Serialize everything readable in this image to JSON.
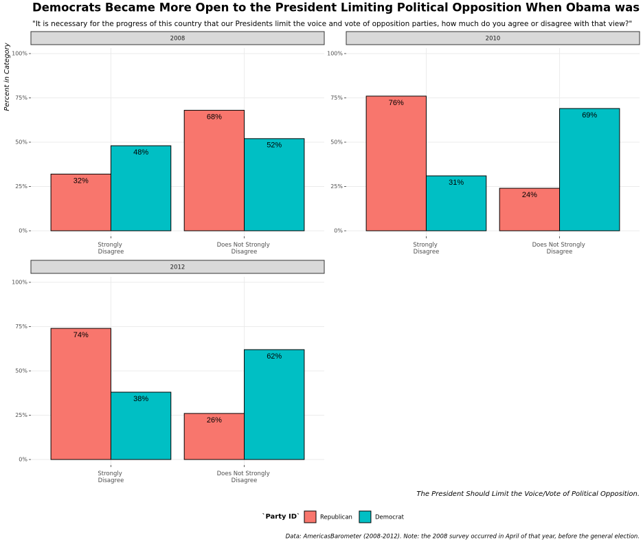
{
  "title": "Democrats Became More Open to the President Limiting Political Opposition When Obama was President",
  "subtitle": "\"It is necessary for the progress of this country that our Presidents limit the voice and vote of opposition parties, how much do you agree or disagree with that view?\"",
  "y_label": "Percent in Category",
  "x_label": "The President Should Limit the Voice/Vote of Political Opposition.",
  "legend_title": "`Party ID`",
  "caption": "Data: AmericasBarometer (2008-2012). Note: the 2008 survey occurred in April of that year, before the general election.",
  "chart_data": [
    {
      "type": "bar",
      "title": "2008",
      "categories": [
        "Strongly Disagree",
        "Does Not Strongly Disagree"
      ],
      "series": [
        {
          "name": "Republican",
          "color": "#f8766d",
          "values": [
            32,
            68
          ],
          "value_labels": [
            "32%",
            "68%"
          ]
        },
        {
          "name": "Democrat",
          "color": "#00bfc4",
          "values": [
            48,
            52
          ],
          "value_labels": [
            "48%",
            "52%"
          ]
        }
      ],
      "ylim": [
        0,
        100
      ],
      "yticks": [
        {
          "value": 0,
          "label": "0%"
        },
        {
          "value": 25,
          "label": "25%"
        },
        {
          "value": 50,
          "label": "50%"
        },
        {
          "value": 75,
          "label": "75%"
        },
        {
          "value": 100,
          "label": "100%"
        }
      ],
      "grid": true
    },
    {
      "type": "bar",
      "title": "2010",
      "categories": [
        "Strongly Disagree",
        "Does Not Strongly Disagree"
      ],
      "series": [
        {
          "name": "Republican",
          "color": "#f8766d",
          "values": [
            76,
            24
          ],
          "value_labels": [
            "76%",
            "24%"
          ]
        },
        {
          "name": "Democrat",
          "color": "#00bfc4",
          "values": [
            31,
            69
          ],
          "value_labels": [
            "31%",
            "69%"
          ]
        }
      ],
      "ylim": [
        0,
        100
      ],
      "yticks": [
        {
          "value": 0,
          "label": "0%"
        },
        {
          "value": 25,
          "label": "25%"
        },
        {
          "value": 50,
          "label": "50%"
        },
        {
          "value": 75,
          "label": "75%"
        },
        {
          "value": 100,
          "label": "100%"
        }
      ],
      "grid": true
    },
    {
      "type": "bar",
      "title": "2012",
      "categories": [
        "Strongly Disagree",
        "Does Not Strongly Disagree"
      ],
      "series": [
        {
          "name": "Republican",
          "color": "#f8766d",
          "values": [
            74,
            26
          ],
          "value_labels": [
            "74%",
            "26%"
          ]
        },
        {
          "name": "Democrat",
          "color": "#00bfc4",
          "values": [
            38,
            62
          ],
          "value_labels": [
            "38%",
            "62%"
          ]
        }
      ],
      "ylim": [
        0,
        100
      ],
      "yticks": [
        {
          "value": 0,
          "label": "0%"
        },
        {
          "value": 25,
          "label": "25%"
        },
        {
          "value": 50,
          "label": "50%"
        },
        {
          "value": 75,
          "label": "75%"
        },
        {
          "value": 100,
          "label": "100%"
        }
      ],
      "grid": true
    }
  ]
}
